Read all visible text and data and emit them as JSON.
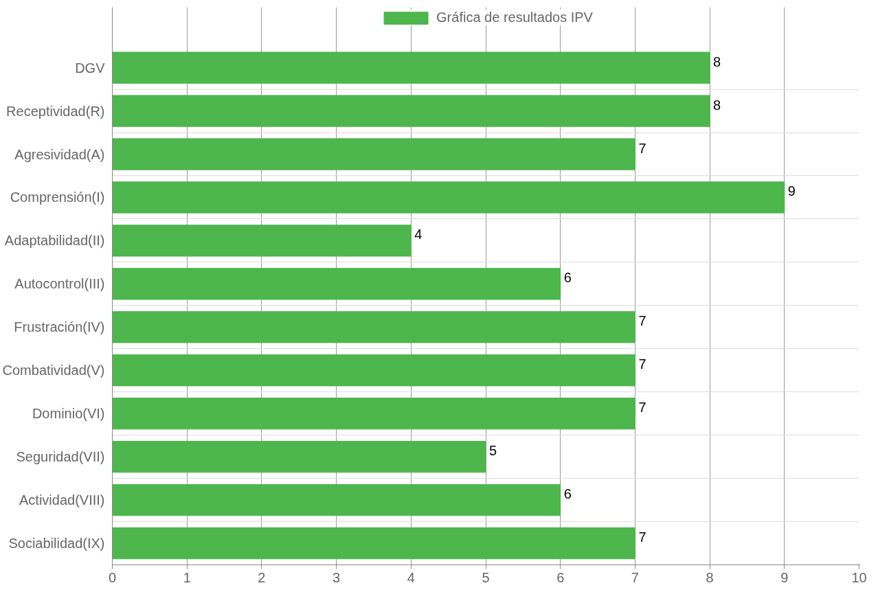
{
  "chart_data": {
    "type": "bar",
    "orientation": "horizontal",
    "categories": [
      "DGV",
      "Receptividad(R)",
      "Agresividad(A)",
      "Comprensión(I)",
      "Adaptabilidad(II)",
      "Autocontrol(III)",
      "Frustración(IV)",
      "Combatividad(V)",
      "Dominio(VI)",
      "Seguridad(VII)",
      "Actividad(VIII)",
      "Sociabilidad(IX)"
    ],
    "series": [
      {
        "name": "Gráfica de resultados IPV",
        "color": "#4db64d",
        "values": [
          8,
          8,
          7,
          9,
          4,
          6,
          7,
          7,
          7,
          5,
          6,
          7
        ]
      }
    ],
    "xlim": [
      0,
      10
    ],
    "xticks": [
      0,
      1,
      2,
      3,
      4,
      5,
      6,
      7,
      8,
      9,
      10
    ],
    "grid": true,
    "legend": "top",
    "data_labels": true
  }
}
